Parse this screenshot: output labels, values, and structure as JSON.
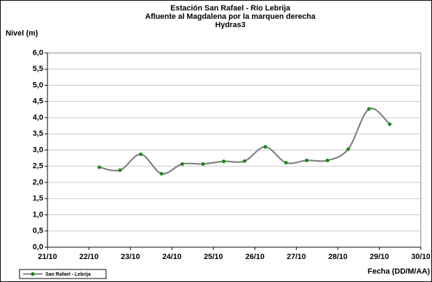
{
  "chart_data": {
    "type": "line",
    "title": [
      "Estación San Rafael - Río Lebrija",
      "Afluente al Magdalena por la marquen derecha",
      "Hydras3"
    ],
    "y_label": "Nivel (m)",
    "x_label": "Fecha (DD/M/AA)",
    "xlim": [
      21,
      30
    ],
    "xticks": [
      {
        "value": 21,
        "label": "21/10"
      },
      {
        "value": 22,
        "label": "22/10"
      },
      {
        "value": 23,
        "label": "23/10"
      },
      {
        "value": 24,
        "label": "24/10"
      },
      {
        "value": 25,
        "label": "25/10"
      },
      {
        "value": 26,
        "label": "26/10"
      },
      {
        "value": 27,
        "label": "27/10"
      },
      {
        "value": 28,
        "label": "28/10"
      },
      {
        "value": 29,
        "label": "29/10"
      },
      {
        "value": 30,
        "label": "30/10"
      }
    ],
    "ylim": [
      0,
      6
    ],
    "yticks": [
      {
        "value": 0,
        "label": "0,0"
      },
      {
        "value": 0.5,
        "label": "0,5"
      },
      {
        "value": 1,
        "label": "1,0"
      },
      {
        "value": 1.5,
        "label": "1,5"
      },
      {
        "value": 2,
        "label": "2,0"
      },
      {
        "value": 2.5,
        "label": "2,5"
      },
      {
        "value": 3,
        "label": "3,0"
      },
      {
        "value": 3.5,
        "label": "3,5"
      },
      {
        "value": 4,
        "label": "4,0"
      },
      {
        "value": 4.5,
        "label": "4,5"
      },
      {
        "value": 5,
        "label": "5,0"
      },
      {
        "value": 5.5,
        "label": "5,5"
      },
      {
        "value": 6,
        "label": "6,0"
      }
    ],
    "grid": true,
    "legend": "bottom-left",
    "x": [
      22.25,
      22.75,
      23.25,
      23.75,
      24.25,
      24.75,
      25.25,
      25.75,
      26.25,
      26.75,
      27.25,
      27.75,
      28.25,
      28.75,
      29.25
    ],
    "series": [
      {
        "name": "San Rafael - Lebrija",
        "color": "#808080",
        "marker_color": "#1a8c1a",
        "values": [
          2.47,
          2.38,
          2.87,
          2.27,
          2.57,
          2.57,
          2.65,
          2.66,
          3.1,
          2.61,
          2.68,
          2.68,
          3.03,
          4.27,
          3.8
        ]
      }
    ]
  }
}
